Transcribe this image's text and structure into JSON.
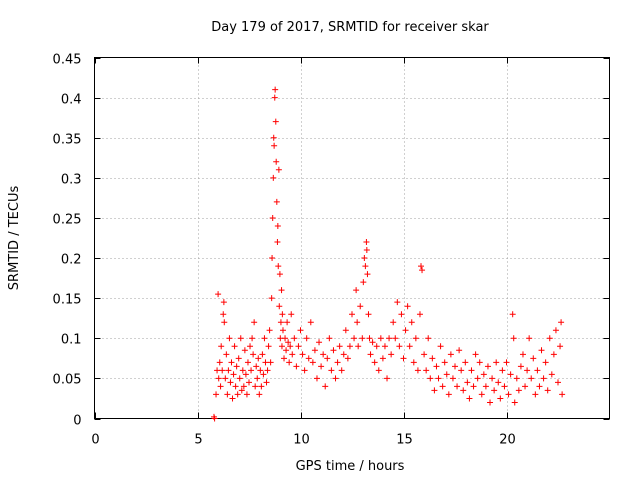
{
  "chart_data": {
    "type": "scatter",
    "title": "Day 179 of 2017, SRMTID for receiver skar",
    "xlabel": "GPS time / hours",
    "ylabel": "SRMTID / TECUs",
    "xlim": [
      0,
      25
    ],
    "ylim": [
      0,
      0.45
    ],
    "xticks": [
      0,
      5,
      10,
      15,
      20
    ],
    "xtick_labels": [
      "0",
      "5",
      "10",
      "15",
      "20"
    ],
    "yticks": [
      0,
      0.05,
      0.1,
      0.15,
      0.2,
      0.25,
      0.3,
      0.35,
      0.4,
      0.45
    ],
    "ytick_labels": [
      "0",
      "0.05",
      "0.1",
      "0.15",
      "0.2",
      "0.25",
      "0.3",
      "0.35",
      "0.4",
      "0.45"
    ],
    "grid": true,
    "marker": "+",
    "color": "#ff0000",
    "series": [
      {
        "name": "SRMTID",
        "points": [
          [
            5.8,
            0.002
          ],
          [
            5.83,
            0.0
          ],
          [
            5.9,
            0.03
          ],
          [
            5.95,
            0.06
          ],
          [
            6.0,
            0.155
          ],
          [
            6.03,
            0.05
          ],
          [
            6.08,
            0.07
          ],
          [
            6.12,
            0.04
          ],
          [
            6.15,
            0.09
          ],
          [
            6.2,
            0.06
          ],
          [
            6.25,
            0.13
          ],
          [
            6.28,
            0.145
          ],
          [
            6.3,
            0.12
          ],
          [
            6.35,
            0.05
          ],
          [
            6.4,
            0.08
          ],
          [
            6.45,
            0.03
          ],
          [
            6.5,
            0.06
          ],
          [
            6.55,
            0.1
          ],
          [
            6.6,
            0.045
          ],
          [
            6.65,
            0.07
          ],
          [
            6.7,
            0.025
          ],
          [
            6.75,
            0.055
          ],
          [
            6.8,
            0.09
          ],
          [
            6.85,
            0.04
          ],
          [
            6.9,
            0.065
          ],
          [
            6.95,
            0.03
          ],
          [
            7.0,
            0.075
          ],
          [
            7.05,
            0.05
          ],
          [
            7.1,
            0.1
          ],
          [
            7.15,
            0.035
          ],
          [
            7.2,
            0.06
          ],
          [
            7.25,
            0.04
          ],
          [
            7.3,
            0.085
          ],
          [
            7.35,
            0.055
          ],
          [
            7.4,
            0.03
          ],
          [
            7.45,
            0.07
          ],
          [
            7.5,
            0.045
          ],
          [
            7.55,
            0.09
          ],
          [
            7.6,
            0.06
          ],
          [
            7.65,
            0.1
          ],
          [
            7.7,
            0.08
          ],
          [
            7.75,
            0.12
          ],
          [
            7.8,
            0.04
          ],
          [
            7.85,
            0.065
          ],
          [
            7.9,
            0.05
          ],
          [
            7.95,
            0.075
          ],
          [
            8.0,
            0.03
          ],
          [
            8.05,
            0.06
          ],
          [
            8.1,
            0.04
          ],
          [
            8.15,
            0.08
          ],
          [
            8.2,
            0.055
          ],
          [
            8.25,
            0.1
          ],
          [
            8.3,
            0.07
          ],
          [
            8.35,
            0.045
          ],
          [
            8.4,
            0.06
          ],
          [
            8.45,
            0.09
          ],
          [
            8.5,
            0.11
          ],
          [
            8.55,
            0.07
          ],
          [
            8.6,
            0.15
          ],
          [
            8.62,
            0.2
          ],
          [
            8.65,
            0.25
          ],
          [
            8.68,
            0.3
          ],
          [
            8.7,
            0.35
          ],
          [
            8.72,
            0.34
          ],
          [
            8.75,
            0.4
          ],
          [
            8.77,
            0.41
          ],
          [
            8.8,
            0.37
          ],
          [
            8.82,
            0.32
          ],
          [
            8.85,
            0.27
          ],
          [
            8.88,
            0.22
          ],
          [
            8.9,
            0.24
          ],
          [
            8.92,
            0.19
          ],
          [
            8.95,
            0.31
          ],
          [
            8.97,
            0.14
          ],
          [
            9.0,
            0.18
          ],
          [
            9.02,
            0.1
          ],
          [
            9.05,
            0.12
          ],
          [
            9.08,
            0.16
          ],
          [
            9.1,
            0.09
          ],
          [
            9.12,
            0.13
          ],
          [
            9.15,
            0.11
          ],
          [
            9.2,
            0.075
          ],
          [
            9.25,
            0.1
          ],
          [
            9.3,
            0.085
          ],
          [
            9.35,
            0.12
          ],
          [
            9.4,
            0.095
          ],
          [
            9.45,
            0.07
          ],
          [
            9.5,
            0.09
          ],
          [
            9.55,
            0.13
          ],
          [
            9.6,
            0.08
          ],
          [
            9.7,
            0.1
          ],
          [
            9.8,
            0.065
          ],
          [
            9.9,
            0.09
          ],
          [
            10.0,
            0.11
          ],
          [
            10.1,
            0.08
          ],
          [
            10.2,
            0.06
          ],
          [
            10.3,
            0.1
          ],
          [
            10.4,
            0.075
          ],
          [
            10.5,
            0.12
          ],
          [
            10.6,
            0.07
          ],
          [
            10.7,
            0.085
          ],
          [
            10.8,
            0.05
          ],
          [
            10.9,
            0.095
          ],
          [
            11.0,
            0.065
          ],
          [
            11.1,
            0.08
          ],
          [
            11.2,
            0.04
          ],
          [
            11.3,
            0.075
          ],
          [
            11.4,
            0.1
          ],
          [
            11.5,
            0.06
          ],
          [
            11.6,
            0.085
          ],
          [
            11.7,
            0.05
          ],
          [
            11.8,
            0.07
          ],
          [
            11.9,
            0.09
          ],
          [
            12.0,
            0.06
          ],
          [
            12.1,
            0.08
          ],
          [
            12.2,
            0.11
          ],
          [
            12.3,
            0.075
          ],
          [
            12.4,
            0.09
          ],
          [
            12.5,
            0.13
          ],
          [
            12.6,
            0.1
          ],
          [
            12.7,
            0.16
          ],
          [
            12.75,
            0.12
          ],
          [
            12.8,
            0.09
          ],
          [
            12.9,
            0.14
          ],
          [
            13.0,
            0.1
          ],
          [
            13.05,
            0.17
          ],
          [
            13.1,
            0.2
          ],
          [
            13.15,
            0.19
          ],
          [
            13.2,
            0.22
          ],
          [
            13.22,
            0.21
          ],
          [
            13.25,
            0.18
          ],
          [
            13.3,
            0.13
          ],
          [
            13.35,
            0.1
          ],
          [
            13.4,
            0.08
          ],
          [
            13.5,
            0.095
          ],
          [
            13.6,
            0.07
          ],
          [
            13.7,
            0.09
          ],
          [
            13.8,
            0.06
          ],
          [
            13.9,
            0.1
          ],
          [
            14.0,
            0.075
          ],
          [
            14.1,
            0.09
          ],
          [
            14.2,
            0.05
          ],
          [
            14.3,
            0.1
          ],
          [
            14.4,
            0.08
          ],
          [
            14.5,
            0.12
          ],
          [
            14.6,
            0.1
          ],
          [
            14.7,
            0.145
          ],
          [
            14.8,
            0.09
          ],
          [
            14.9,
            0.13
          ],
          [
            15.0,
            0.075
          ],
          [
            15.1,
            0.11
          ],
          [
            15.2,
            0.14
          ],
          [
            15.3,
            0.09
          ],
          [
            15.4,
            0.12
          ],
          [
            15.5,
            0.07
          ],
          [
            15.6,
            0.1
          ],
          [
            15.7,
            0.06
          ],
          [
            15.8,
            0.13
          ],
          [
            15.85,
            0.19
          ],
          [
            15.9,
            0.185
          ],
          [
            16.0,
            0.08
          ],
          [
            16.1,
            0.06
          ],
          [
            16.2,
            0.1
          ],
          [
            16.3,
            0.05
          ],
          [
            16.4,
            0.075
          ],
          [
            16.5,
            0.035
          ],
          [
            16.6,
            0.065
          ],
          [
            16.7,
            0.05
          ],
          [
            16.8,
            0.09
          ],
          [
            16.9,
            0.04
          ],
          [
            17.0,
            0.07
          ],
          [
            17.1,
            0.055
          ],
          [
            17.2,
            0.03
          ],
          [
            17.3,
            0.08
          ],
          [
            17.4,
            0.05
          ],
          [
            17.5,
            0.065
          ],
          [
            17.6,
            0.04
          ],
          [
            17.7,
            0.085
          ],
          [
            17.8,
            0.06
          ],
          [
            17.9,
            0.035
          ],
          [
            18.0,
            0.07
          ],
          [
            18.1,
            0.045
          ],
          [
            18.2,
            0.025
          ],
          [
            18.3,
            0.06
          ],
          [
            18.4,
            0.04
          ],
          [
            18.5,
            0.08
          ],
          [
            18.6,
            0.05
          ],
          [
            18.7,
            0.07
          ],
          [
            18.8,
            0.03
          ],
          [
            18.9,
            0.055
          ],
          [
            19.0,
            0.04
          ],
          [
            19.1,
            0.065
          ],
          [
            19.2,
            0.02
          ],
          [
            19.3,
            0.05
          ],
          [
            19.4,
            0.035
          ],
          [
            19.5,
            0.07
          ],
          [
            19.6,
            0.045
          ],
          [
            19.7,
            0.025
          ],
          [
            19.8,
            0.06
          ],
          [
            19.9,
            0.04
          ],
          [
            20.0,
            0.07
          ],
          [
            20.1,
            0.03
          ],
          [
            20.2,
            0.055
          ],
          [
            20.3,
            0.13
          ],
          [
            20.35,
            0.1
          ],
          [
            20.4,
            0.02
          ],
          [
            20.5,
            0.05
          ],
          [
            20.6,
            0.035
          ],
          [
            20.7,
            0.065
          ],
          [
            20.8,
            0.08
          ],
          [
            20.9,
            0.04
          ],
          [
            21.0,
            0.06
          ],
          [
            21.1,
            0.1
          ],
          [
            21.2,
            0.05
          ],
          [
            21.3,
            0.075
          ],
          [
            21.4,
            0.03
          ],
          [
            21.5,
            0.06
          ],
          [
            21.6,
            0.04
          ],
          [
            21.7,
            0.085
          ],
          [
            21.8,
            0.05
          ],
          [
            21.9,
            0.07
          ],
          [
            22.0,
            0.035
          ],
          [
            22.1,
            0.1
          ],
          [
            22.2,
            0.055
          ],
          [
            22.3,
            0.08
          ],
          [
            22.4,
            0.11
          ],
          [
            22.5,
            0.045
          ],
          [
            22.6,
            0.09
          ],
          [
            22.65,
            0.12
          ],
          [
            22.7,
            0.03
          ]
        ]
      }
    ]
  }
}
